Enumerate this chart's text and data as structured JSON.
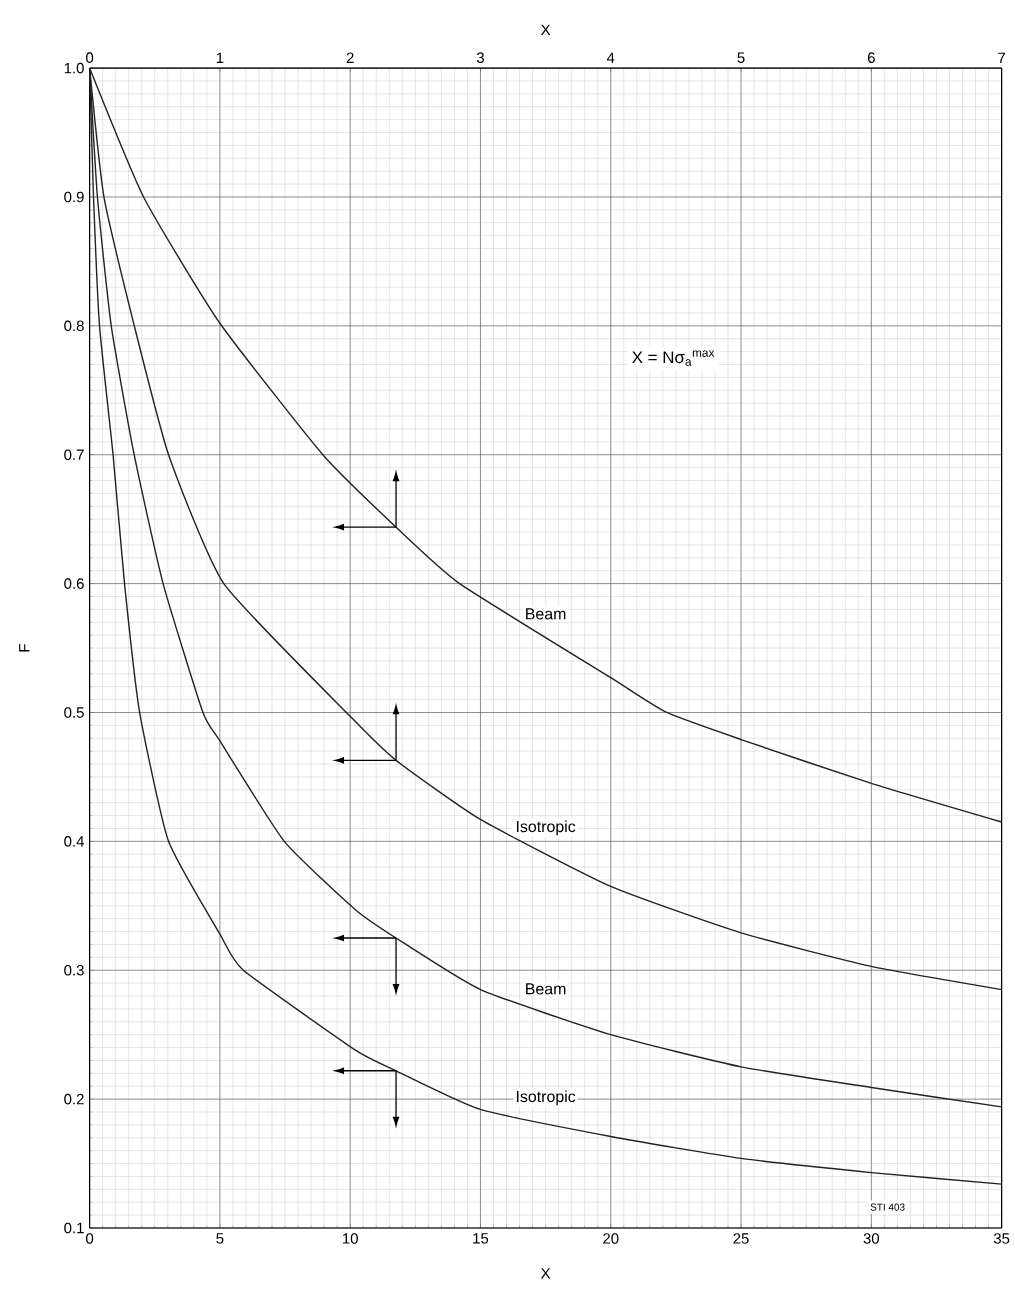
{
  "chart_data": {
    "type": "line",
    "xlabel": "X",
    "x2label": "X",
    "ylabel": "F",
    "xlim": [
      0,
      35
    ],
    "xticks": [
      0,
      5,
      10,
      15,
      20,
      25,
      30,
      35
    ],
    "x2lim": [
      0,
      7
    ],
    "x2ticks": [
      0,
      1,
      2,
      3,
      4,
      5,
      6,
      7
    ],
    "ylim": [
      0.1,
      1.0
    ],
    "yticks": [
      0.1,
      0.2,
      0.3,
      0.4,
      0.5,
      0.6,
      0.7,
      0.8,
      0.9,
      {
        "value": 1.0,
        "label": "1.0"
      }
    ],
    "grid": true,
    "annotations": [
      "X = Nσ$_{a}$$^{max}$",
      "STI 403"
    ],
    "series": [
      {
        "name": "Beam",
        "color": "#222222",
        "axis": "x2",
        "x": [
          0,
          0.414,
          1,
          1.79,
          2.35,
          2.84,
          4,
          4.43,
          5,
          6,
          7
        ],
        "values": [
          1.0,
          0.9,
          0.802,
          0.7,
          0.644,
          0.6,
          0.527,
          0.5,
          0.479,
          0.445,
          0.415
        ]
      },
      {
        "name": "Isotropic",
        "color": "#222222",
        "axis": "x2",
        "x": [
          0,
          0.11,
          0.343,
          0.606,
          1.03,
          2.0,
          2.35,
          3,
          4,
          5,
          6,
          7
        ],
        "values": [
          1.0,
          0.9,
          0.8,
          0.7,
          0.6,
          0.497,
          0.463,
          0.417,
          0.365,
          0.329,
          0.303,
          0.285
        ]
      },
      {
        "name": "Beam",
        "color": "#222222",
        "x": [
          0,
          0.3,
          0.83,
          1.71,
          2.82,
          4.35,
          5,
          7.47,
          10.2,
          11.76,
          15,
          20,
          25,
          30,
          35
        ],
        "values": [
          1.0,
          0.9,
          0.8,
          0.7,
          0.6,
          0.5,
          0.478,
          0.4,
          0.347,
          0.325,
          0.285,
          0.25,
          0.225,
          0.209,
          0.194
        ]
      },
      {
        "name": "Isotropic",
        "color": "#222222",
        "x": [
          0,
          0.15,
          0.38,
          0.9,
          1.34,
          1.92,
          3.03,
          5,
          5.9,
          10.2,
          11.76,
          15,
          20,
          25,
          30,
          35
        ],
        "values": [
          1.0,
          0.9,
          0.8,
          0.7,
          0.6,
          0.5,
          0.4,
          0.328,
          0.3,
          0.238,
          0.222,
          0.192,
          0.171,
          0.154,
          0.143,
          0.134
        ]
      }
    ]
  }
}
